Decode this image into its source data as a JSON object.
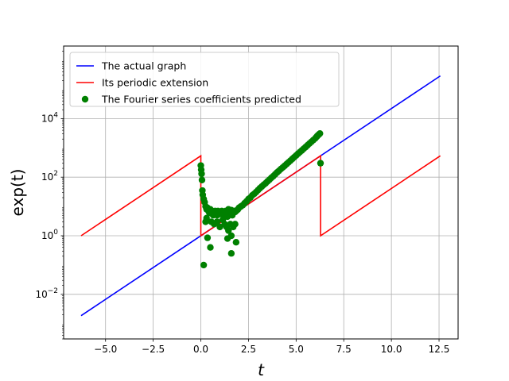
{
  "chart_data": {
    "type": "line",
    "title": "",
    "xlabel": "t",
    "ylabel": "exp(t)",
    "xlim": [
      -7.2,
      13.5
    ],
    "ylim": [
      0.0003,
      3000000
    ],
    "yscale": "log",
    "grid": true,
    "legend_position": "top-left",
    "x_ticks": [
      -5.0,
      -2.5,
      0.0,
      2.5,
      5.0,
      7.5,
      10.0,
      12.5
    ],
    "x_tick_labels": [
      "−5.0",
      "−2.5",
      "0.0",
      "2.5",
      "5.0",
      "7.5",
      "10.0",
      "12.5"
    ],
    "y_ticks": [
      {
        "value": 0.01,
        "base": "10",
        "exp": "−2"
      },
      {
        "value": 1,
        "base": "10",
        "exp": "0"
      },
      {
        "value": 100,
        "base": "10",
        "exp": "2"
      },
      {
        "value": 10000,
        "base": "10",
        "exp": "4"
      }
    ],
    "series": [
      {
        "name": "The actual graph",
        "kind": "line",
        "color": "#0000ff",
        "x": [
          -6.2832,
          12.5664
        ],
        "y": [
          0.001867,
          286751
        ]
      },
      {
        "name": "Its periodic extension",
        "kind": "line",
        "color": "#ff0000",
        "x": [
          -6.2832,
          0.0,
          0.0,
          6.2832,
          6.2832,
          12.5664
        ],
        "y": [
          1.0,
          535.5,
          1.0,
          535.5,
          1.0,
          535.5
        ]
      },
      {
        "name": "The Fourier series coefficients predicted",
        "kind": "scatter",
        "color": "#008000",
        "x": [
          0.0,
          0.02,
          0.04,
          0.06,
          0.08,
          0.1,
          0.15,
          0.2,
          0.25,
          0.3,
          0.35,
          0.4,
          0.45,
          0.5,
          0.55,
          0.6,
          0.65,
          0.7,
          0.75,
          0.8,
          0.85,
          0.9,
          0.95,
          1.0,
          1.05,
          1.1,
          1.15,
          1.2,
          1.25,
          1.3,
          1.35,
          1.4,
          1.45,
          1.5,
          1.55,
          1.6,
          1.65,
          1.7,
          1.75,
          1.8,
          1.85,
          1.9,
          1.95,
          2.0,
          2.1,
          2.2,
          2.3,
          2.4,
          2.5,
          2.6,
          2.7,
          2.8,
          2.9,
          3.0,
          3.1,
          3.2,
          3.3,
          3.4,
          3.5,
          3.6,
          3.7,
          3.8,
          3.9,
          4.0,
          4.1,
          4.2,
          4.3,
          4.4,
          4.5,
          4.6,
          4.7,
          4.8,
          4.9,
          5.0,
          5.1,
          5.2,
          5.3,
          5.4,
          5.5,
          5.6,
          5.7,
          5.8,
          5.9,
          6.0,
          6.05,
          6.1,
          6.15,
          6.2,
          6.25,
          6.28,
          0.3,
          0.55,
          0.7,
          0.85,
          1.0,
          1.15,
          1.25,
          1.35,
          1.45,
          1.55,
          1.6,
          1.7,
          1.8,
          0.15,
          0.25,
          0.35,
          0.5,
          1.4,
          1.6,
          1.85
        ],
        "y": [
          250,
          180,
          130,
          80,
          35,
          25,
          18,
          14,
          10,
          8,
          9,
          7,
          6,
          8,
          6,
          7,
          5,
          6,
          7,
          6,
          5,
          7,
          6,
          5.5,
          6,
          7,
          6.5,
          6,
          5,
          7,
          6,
          4.5,
          8,
          7,
          6.5,
          7.5,
          5,
          6,
          7,
          6.5,
          7,
          7.5,
          8,
          9,
          10,
          11,
          13,
          15,
          18,
          20,
          24,
          27,
          31,
          36,
          42,
          48,
          55,
          62,
          72,
          82,
          95,
          108,
          125,
          145,
          165,
          190,
          215,
          245,
          280,
          320,
          365,
          420,
          480,
          550,
          630,
          720,
          820,
          940,
          1070,
          1230,
          1410,
          1610,
          1840,
          2100,
          2300,
          2500,
          2700,
          2900,
          3100,
          300,
          4,
          3,
          2.5,
          3,
          2,
          3.5,
          2.5,
          2,
          1.5,
          2.5,
          1,
          2,
          2.5,
          0.1,
          3,
          0.85,
          0.4,
          0.8,
          0.25,
          0.6
        ],
        "note": ""
      }
    ]
  }
}
